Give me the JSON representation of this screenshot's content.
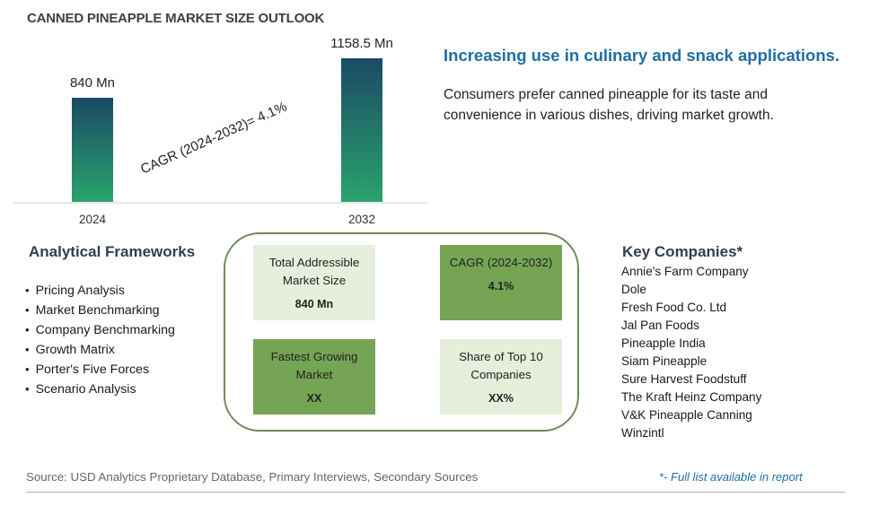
{
  "title": "CANNED PINEAPPLE MARKET SIZE OUTLOOK",
  "chart_data": {
    "type": "bar",
    "categories": [
      "2024",
      "2032"
    ],
    "values": [
      840,
      1158.5
    ],
    "value_labels": [
      "840 Mn",
      "1158.5 Mn"
    ],
    "unit": "Mn",
    "annotation": "CAGR (2024-2032)=  4.1%",
    "grid": false,
    "colors": {
      "bar_top": "#1b4a66",
      "bar_bottom": "#2aa36c"
    }
  },
  "headline": "Increasing use in culinary and snack applications.",
  "description": "Consumers prefer canned pineapple for its taste and convenience in various dishes, driving market growth.",
  "frameworks": {
    "title": "Analytical Frameworks",
    "items": [
      "Pricing Analysis",
      "Market Benchmarking",
      "Company Benchmarking",
      "Growth Matrix",
      "Porter's Five Forces",
      "Scenario Analysis"
    ]
  },
  "summary": {
    "tam": {
      "label": "Total Addressible Market Size",
      "value": "840 Mn"
    },
    "cagr": {
      "label": "CAGR (2024-2032)",
      "value": "4.1%"
    },
    "fastest": {
      "label": "Fastest Growing Market",
      "value": "XX"
    },
    "share": {
      "label": "Share of Top 10 Companies",
      "value": "XX%"
    }
  },
  "key_companies": {
    "title": "Key Companies*",
    "items": [
      "Annie's Farm Company",
      "Dole",
      "Fresh Food Co. Ltd",
      "Jal Pan Foods",
      "Pineapple India",
      "Siam Pineapple",
      "Sure Harvest Foodstuff",
      "The Kraft Heinz Company",
      "V&K Pineapple Canning",
      "Winzintl"
    ]
  },
  "source": "Source: USD Analytics Proprietary Database, Primary Interviews, Secondary Sources",
  "footnote": "*- Full list available in report",
  "colors": {
    "accent": "#1f6ea5",
    "box_light": "#e6eedc",
    "box_dark": "#75a454",
    "frame": "#6e8a5a"
  }
}
